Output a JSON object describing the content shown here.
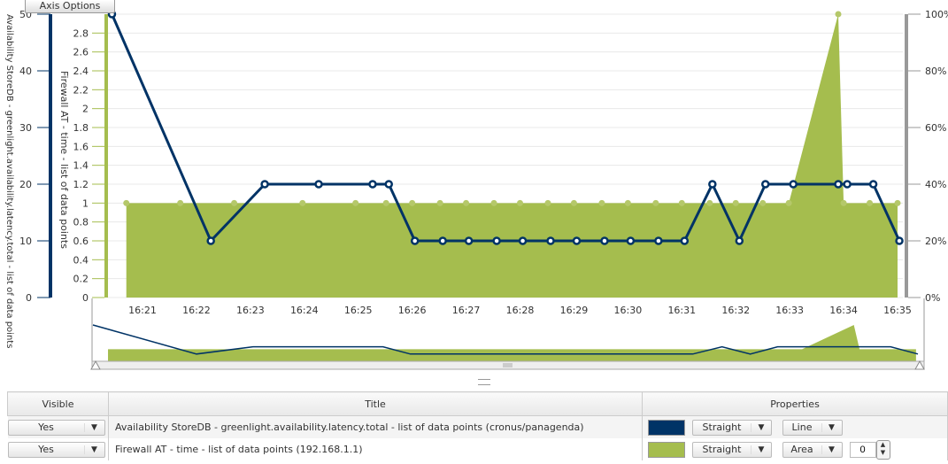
{
  "toolbar": {
    "axis_options_label": "Axis Options"
  },
  "chart_data": {
    "type": "line+area",
    "x_ticks": [
      "16:21",
      "16:22",
      "16:23",
      "16:24",
      "16:25",
      "16:26",
      "16:27",
      "16:28",
      "16:29",
      "16:30",
      "16:31",
      "16:32",
      "16:33",
      "16:34",
      "16:35"
    ],
    "axes": [
      {
        "title": "Availability StoreDB - greenlight.availability.latency.total - list of data points",
        "ylim": [
          0,
          50
        ],
        "ticks": [
          "0",
          "10",
          "20",
          "30",
          "40",
          "50"
        ],
        "color": "#003366"
      },
      {
        "title": "Firewall AT - time - list of data points",
        "ylim": [
          0,
          3
        ],
        "ticks": [
          "0",
          "0.2",
          "0.4",
          "0.6",
          "0.8",
          "1",
          "1.2",
          "1.4",
          "1.6",
          "1.8",
          "2",
          "2.2",
          "2.4",
          "2.6",
          "2.8"
        ],
        "color": "#a5bd4e"
      },
      {
        "title": "",
        "ylim": [
          0,
          100
        ],
        "ticks": [
          "0%",
          "20%",
          "40%",
          "60%",
          "80%",
          "100%"
        ],
        "color": "#999999"
      }
    ],
    "grid": true,
    "series": [
      {
        "name": "Availability StoreDB - greenlight.availability.latency.total - list of data points (cronus/panagenda)",
        "type": "line",
        "axis": 0,
        "color": "#003366",
        "x": [
          "16:20:26",
          "16:22:16",
          "16:23:16",
          "16:24:16",
          "16:25:16",
          "16:25:34",
          "16:26:03",
          "16:26:34",
          "16:27:03",
          "16:27:34",
          "16:28:03",
          "16:28:34",
          "16:29:03",
          "16:29:34",
          "16:30:03",
          "16:30:34",
          "16:31:03",
          "16:31:34",
          "16:32:04",
          "16:32:33",
          "16:33:04",
          "16:33:54",
          "16:34:04",
          "16:34:33",
          "16:35:02"
        ],
        "y": [
          50,
          10,
          20,
          20,
          20,
          20,
          10,
          10,
          10,
          10,
          10,
          10,
          10,
          10,
          10,
          10,
          10,
          20,
          10,
          20,
          20,
          20,
          20,
          20,
          10
        ]
      },
      {
        "name": "Firewall AT - time - list of data points (192.168.1.1)",
        "type": "area",
        "axis": 1,
        "color": "#a5bd4e",
        "x": [
          "16:20:42",
          "16:21:42",
          "16:22:42",
          "16:23:58",
          "16:24:57",
          "16:25:31",
          "16:26:00",
          "16:26:31",
          "16:27:00",
          "16:27:31",
          "16:28:00",
          "16:28:31",
          "16:29:00",
          "16:29:31",
          "16:30:00",
          "16:30:31",
          "16:31:00",
          "16:31:31",
          "16:32:00",
          "16:32:30",
          "16:32:59",
          "16:33:54",
          "16:34:00",
          "16:34:29",
          "16:35:00"
        ],
        "y": [
          1,
          1,
          1,
          1,
          1,
          1,
          1,
          1,
          1,
          1,
          1,
          1,
          1,
          1,
          1,
          1,
          1,
          1,
          1,
          1,
          1,
          3,
          1,
          1,
          1
        ]
      }
    ]
  },
  "table": {
    "headers": {
      "visible": "Visible",
      "title": "Title",
      "properties": "Properties"
    },
    "rows": [
      {
        "visible": "Yes",
        "title": "Availability StoreDB - greenlight.availability.latency.total - list of data points (cronus/panagenda)",
        "color": "#003366",
        "curve": "Straight",
        "type": "Line"
      },
      {
        "visible": "Yes",
        "title": "Firewall AT - time - list of data points (192.168.1.1)",
        "color": "#a5bd4e",
        "curve": "Straight",
        "type": "Area",
        "offset": "0"
      }
    ]
  }
}
